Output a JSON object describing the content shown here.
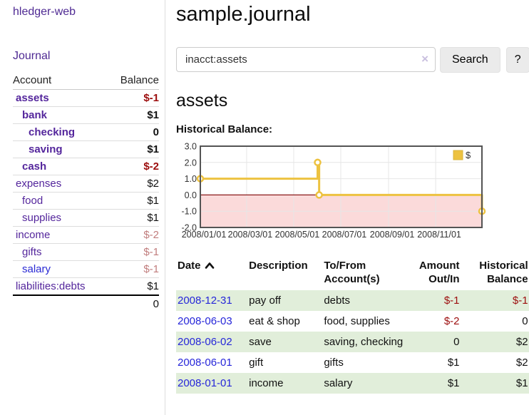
{
  "sidebar": {
    "brand": "hledger-web",
    "nav": {
      "journal": "Journal"
    },
    "accounts_table": {
      "account_header": "Account",
      "balance_header": "Balance",
      "accounts": [
        {
          "name": "assets",
          "indent": 0,
          "bold": true,
          "balance": "$-1",
          "balance_style": "neg-strong",
          "link_color": "purple"
        },
        {
          "name": "bank",
          "indent": 1,
          "bold": true,
          "balance": "$1",
          "balance_style": "pos",
          "link_color": "purple"
        },
        {
          "name": "checking",
          "indent": 2,
          "bold": true,
          "balance": "0",
          "balance_style": "pos",
          "link_color": "purple"
        },
        {
          "name": "saving",
          "indent": 2,
          "bold": true,
          "balance": "$1",
          "balance_style": "pos",
          "link_color": "purple"
        },
        {
          "name": "cash",
          "indent": 1,
          "bold": true,
          "balance": "$-2",
          "balance_style": "neg-strong",
          "link_color": "purple"
        },
        {
          "name": "expenses",
          "indent": 0,
          "bold": false,
          "balance": "$2",
          "balance_style": "pos",
          "link_color": "purple"
        },
        {
          "name": "food",
          "indent": 1,
          "bold": false,
          "balance": "$1",
          "balance_style": "pos",
          "link_color": "purple"
        },
        {
          "name": "supplies",
          "indent": 1,
          "bold": false,
          "balance": "$1",
          "balance_style": "pos",
          "link_color": "purple"
        },
        {
          "name": "income",
          "indent": 0,
          "bold": false,
          "balance": "$-2",
          "balance_style": "neg-muted",
          "link_color": "purple"
        },
        {
          "name": "gifts",
          "indent": 1,
          "bold": false,
          "balance": "$-1",
          "balance_style": "neg-muted",
          "link_color": "purple"
        },
        {
          "name": "salary",
          "indent": 1,
          "bold": false,
          "balance": "$-1",
          "balance_style": "neg-muted",
          "link_color": "blue"
        },
        {
          "name": "liabilities:debts",
          "indent": 0,
          "bold": false,
          "balance": "$1",
          "balance_style": "pos",
          "link_color": "purple"
        }
      ],
      "total": "0"
    }
  },
  "main": {
    "title": "sample.journal",
    "search": {
      "value": "inacct:assets",
      "clear_icon": "×",
      "button": "Search",
      "help_button": "?"
    },
    "account_heading": "assets",
    "chart_label": "Historical Balance:"
  },
  "transactions": {
    "headers": {
      "date": "Date",
      "description": "Description",
      "tofrom_line1": "To/From",
      "tofrom_line2": "Account(s)",
      "amount_line1": "Amount",
      "amount_line2": "Out/In",
      "balance_line1": "Historical",
      "balance_line2": "Balance"
    },
    "rows": [
      {
        "date": "2008-12-31",
        "description": "pay off",
        "accounts": "debts",
        "amount": "$-1",
        "amount_negative": true,
        "balance": "$-1",
        "balance_negative": true,
        "shaded": true
      },
      {
        "date": "2008-06-03",
        "description": "eat & shop",
        "accounts": "food, supplies",
        "amount": "$-2",
        "amount_negative": true,
        "balance": "0",
        "balance_negative": false,
        "shaded": false
      },
      {
        "date": "2008-06-02",
        "description": "save",
        "accounts": "saving, checking",
        "amount": "0",
        "amount_negative": false,
        "balance": "$2",
        "balance_negative": false,
        "shaded": true
      },
      {
        "date": "2008-06-01",
        "description": "gift",
        "accounts": "gifts",
        "amount": "$1",
        "amount_negative": false,
        "balance": "$2",
        "balance_negative": false,
        "shaded": false
      },
      {
        "date": "2008-01-01",
        "description": "income",
        "accounts": "salary",
        "amount": "$1",
        "amount_negative": false,
        "balance": "$1",
        "balance_negative": false,
        "shaded": true
      }
    ]
  },
  "chart_data": {
    "type": "line",
    "title": "Historical Balance",
    "step": true,
    "series": [
      {
        "name": "$",
        "color": "#edc240",
        "points": [
          [
            "2008-01-01",
            1
          ],
          [
            "2008-06-01",
            2
          ],
          [
            "2008-06-03",
            0
          ],
          [
            "2008-12-31",
            -1
          ]
        ]
      }
    ],
    "ylim": [
      -2.0,
      3.0
    ],
    "yticks": [
      3.0,
      2.0,
      1.0,
      0.0,
      -1.0,
      -2.0
    ],
    "xticks": [
      "2008/01/01",
      "2008/03/01",
      "2008/05/01",
      "2008/07/01",
      "2008/09/01",
      "2008/11/01"
    ],
    "x_range": [
      "2008-01-01",
      "2008-12-31"
    ],
    "grid": true,
    "legend_position": "top-right",
    "legend_label": "$",
    "negative_region_fill": "#fbdada",
    "zero_line_color": "#8b1a1a",
    "grid_color": "#e6e6e6",
    "border_color": "#545454"
  },
  "colors": {
    "accent_purple": "#54269c",
    "link_blue": "#2626d9",
    "negative_strong": "#9c0d0d",
    "negative_muted": "#c17d7d",
    "row_green": "#e1eeda",
    "chart_gold": "#edc240",
    "chart_pink": "#fbdada",
    "chart_zero_red": "#8b1a1a"
  }
}
